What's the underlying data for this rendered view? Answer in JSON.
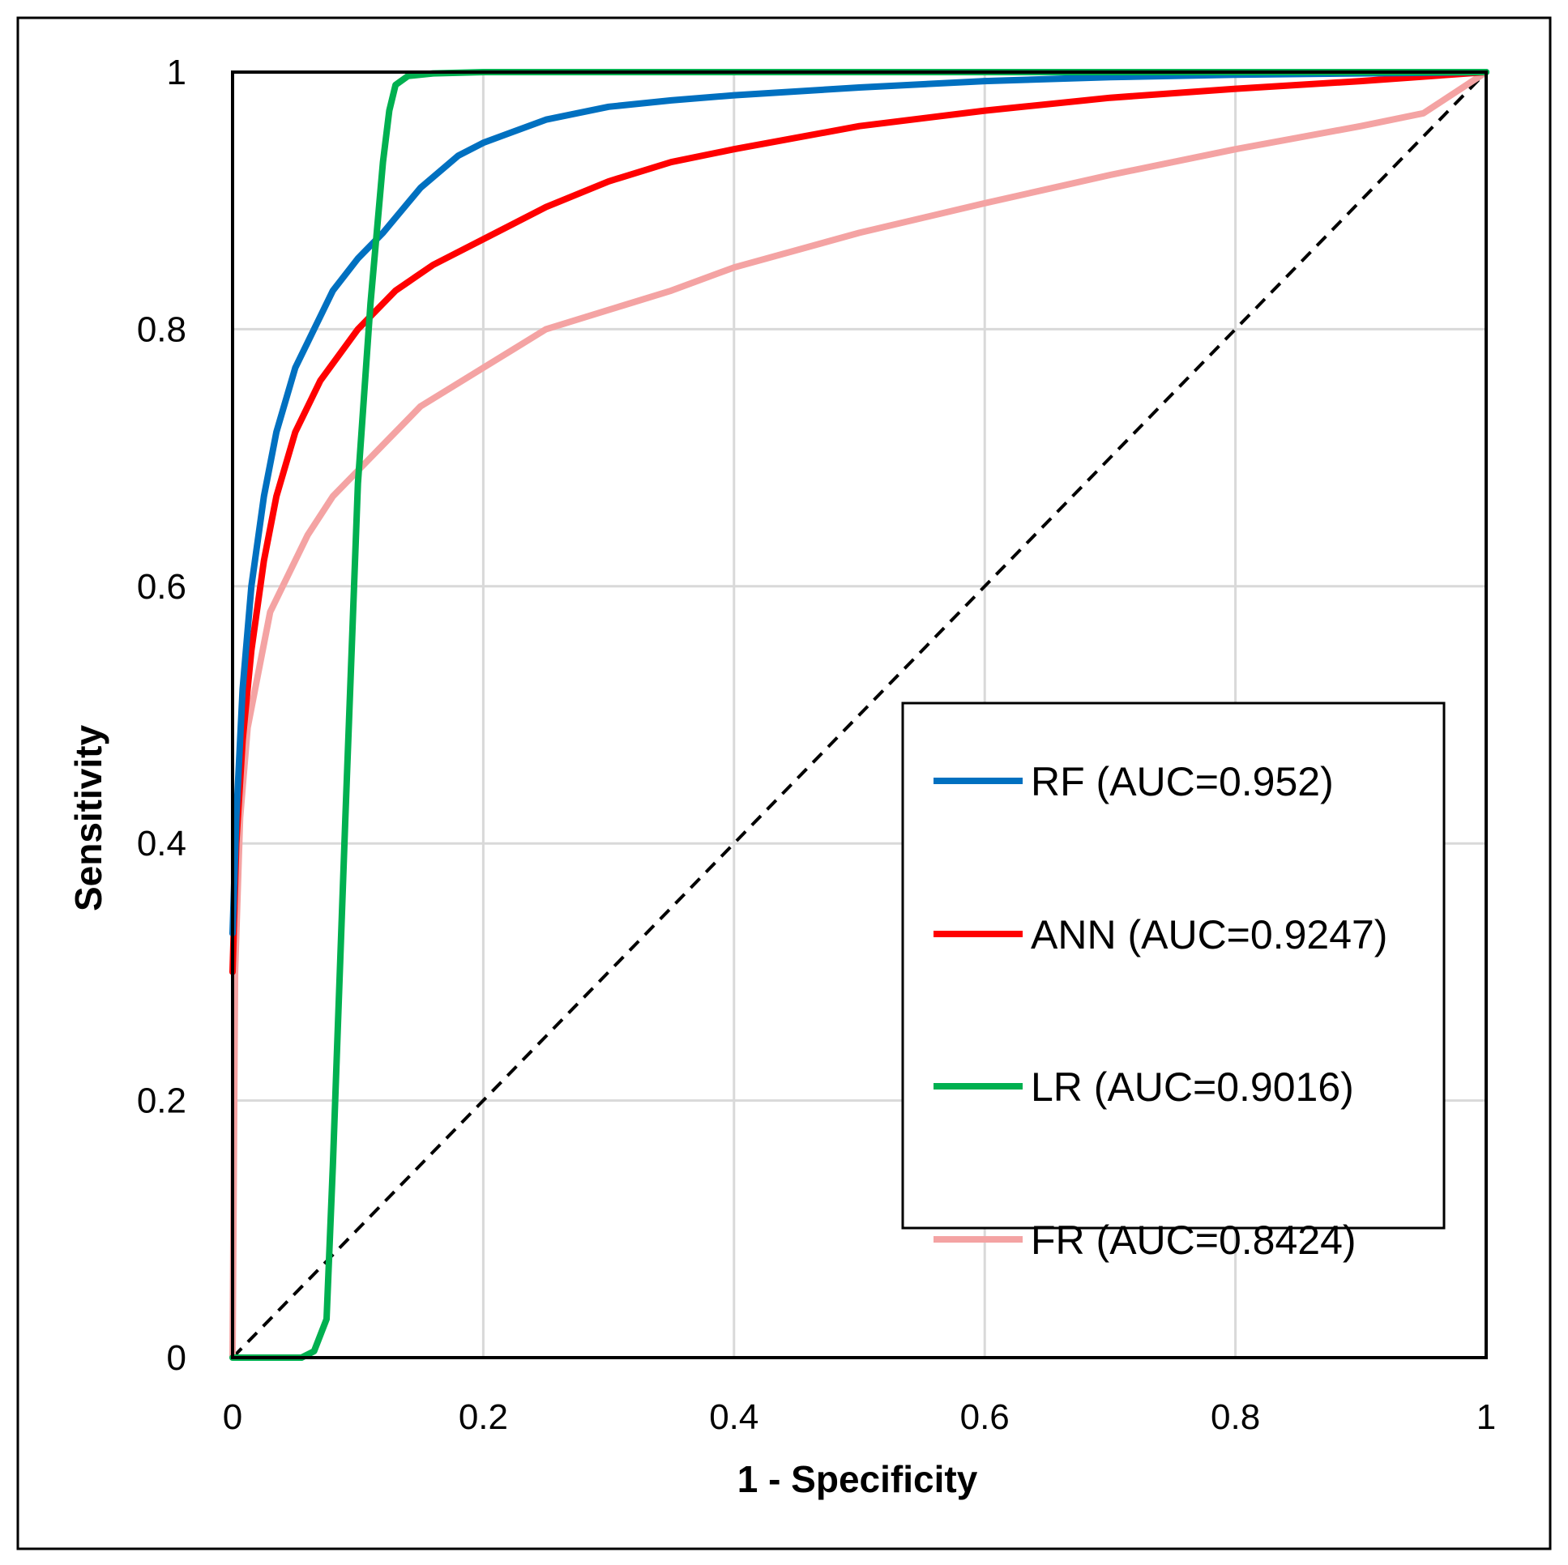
{
  "chart_data": {
    "type": "line",
    "title": "",
    "xlabel": "1 - Specificity",
    "ylabel": "Sensitivity",
    "xlim": [
      0,
      1
    ],
    "ylim": [
      0,
      1
    ],
    "grid": true,
    "legend_position": "bottom-right",
    "xticks": [
      "0",
      "0.2",
      "0.4",
      "0.6",
      "0.8",
      "1"
    ],
    "yticks": [
      "0",
      "0.2",
      "0.4",
      "0.6",
      "0.8",
      "1"
    ],
    "series": [
      {
        "name": "RF (AUC=0.952)",
        "color": "#0070C0",
        "x": [
          0,
          0.003,
          0.008,
          0.015,
          0.025,
          0.035,
          0.05,
          0.065,
          0.08,
          0.1,
          0.12,
          0.15,
          0.18,
          0.2,
          0.25,
          0.3,
          0.35,
          0.4,
          0.5,
          0.6,
          0.7,
          0.8,
          0.9,
          1.0
        ],
        "y": [
          0.33,
          0.42,
          0.52,
          0.6,
          0.67,
          0.72,
          0.77,
          0.8,
          0.83,
          0.855,
          0.875,
          0.91,
          0.935,
          0.945,
          0.963,
          0.973,
          0.978,
          0.982,
          0.988,
          0.993,
          0.996,
          0.998,
          0.999,
          1.0
        ]
      },
      {
        "name": "ANN (AUC=0.9247)",
        "color": "#FF0000",
        "x": [
          0,
          0.003,
          0.008,
          0.015,
          0.025,
          0.035,
          0.05,
          0.07,
          0.1,
          0.13,
          0.16,
          0.2,
          0.25,
          0.3,
          0.35,
          0.4,
          0.5,
          0.6,
          0.7,
          0.8,
          0.9,
          1.0
        ],
        "y": [
          0.3,
          0.4,
          0.48,
          0.55,
          0.62,
          0.67,
          0.72,
          0.76,
          0.8,
          0.83,
          0.85,
          0.87,
          0.895,
          0.915,
          0.93,
          0.94,
          0.958,
          0.97,
          0.98,
          0.987,
          0.993,
          1.0
        ]
      },
      {
        "name": "LR (AUC=0.9016)",
        "color": "#00B050",
        "x": [
          0,
          0.055,
          0.065,
          0.075,
          0.08,
          0.09,
          0.1,
          0.11,
          0.12,
          0.125,
          0.13,
          0.14,
          0.16,
          0.2,
          1.0
        ],
        "y": [
          0,
          0,
          0.005,
          0.03,
          0.15,
          0.42,
          0.68,
          0.82,
          0.93,
          0.97,
          0.99,
          0.997,
          0.999,
          1.0,
          1.0
        ]
      },
      {
        "name": "FR (AUC=0.8424)",
        "color": "#F4A3A3",
        "x": [
          0,
          0.002,
          0.006,
          0.012,
          0.02,
          0.03,
          0.045,
          0.06,
          0.08,
          0.1,
          0.12,
          0.15,
          0.2,
          0.25,
          0.3,
          0.35,
          0.4,
          0.5,
          0.6,
          0.7,
          0.8,
          0.9,
          0.95,
          1.0
        ],
        "y": [
          0,
          0.3,
          0.42,
          0.49,
          0.53,
          0.58,
          0.61,
          0.64,
          0.67,
          0.69,
          0.71,
          0.74,
          0.77,
          0.8,
          0.815,
          0.83,
          0.848,
          0.875,
          0.898,
          0.92,
          0.94,
          0.958,
          0.968,
          1.0
        ]
      }
    ],
    "reference_line": {
      "name": "chance diagonal",
      "x": [
        0,
        1
      ],
      "y": [
        0,
        1
      ],
      "style": "dashed",
      "color": "#000000"
    }
  }
}
